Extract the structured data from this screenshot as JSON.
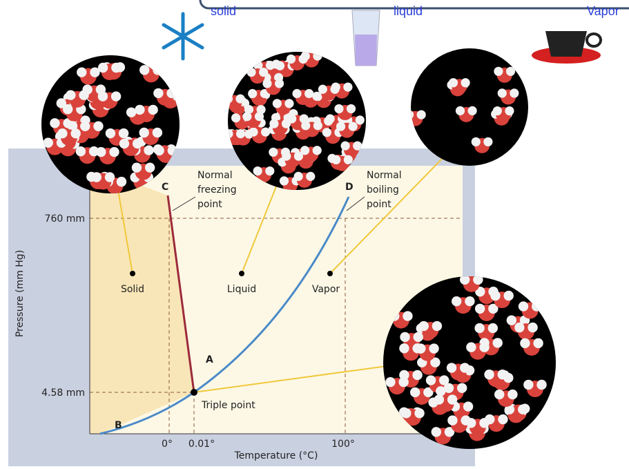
{
  "banner": {
    "labels": [
      "solid",
      "liquid",
      "Vapor"
    ]
  },
  "diagram": {
    "y_axis_label": "Pressure (mm Hg)",
    "x_axis_label": "Temperature (°C)",
    "pressure_labels": [
      "760 mm",
      "4.58 mm"
    ],
    "temperature_labels": [
      "0°",
      "0.01°",
      "100°"
    ],
    "regions": [
      "Solid",
      "Liquid",
      "Vapor"
    ],
    "points": {
      "C": "C",
      "D": "D",
      "A": "A",
      "B": "B"
    },
    "notes": {
      "freezing": [
        "Normal",
        "freezing",
        "point"
      ],
      "boiling": [
        "Normal",
        "boiling",
        "point"
      ],
      "triple": "Triple point"
    }
  }
}
